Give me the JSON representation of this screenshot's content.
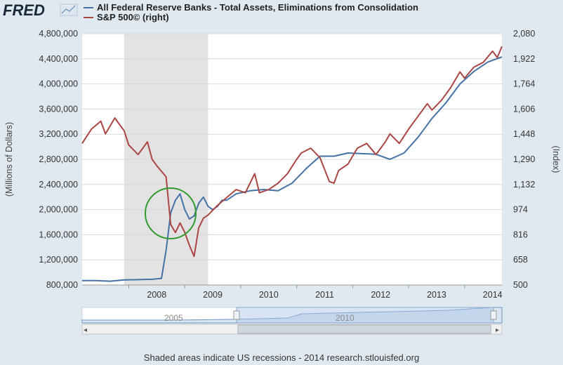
{
  "logo": {
    "text": "FRED",
    "icon": "fred-graph-icon"
  },
  "footer": {
    "text": "Shaded areas indicate US recessions - 2014 research.stlouisfed.org"
  },
  "colors": {
    "blue": "#4572a7",
    "red": "#aa4643",
    "recession": "#e3e3e3",
    "highlight_circle": "#2e9a2e"
  },
  "navigator": {
    "labels": [
      "2005",
      "2010"
    ],
    "scroll_left": "◂",
    "scroll_right": "▸"
  },
  "chart_data": {
    "type": "line",
    "x_ticks": [
      "2008",
      "2009",
      "2010",
      "2011",
      "2012",
      "2013",
      "2014"
    ],
    "xlim": [
      "2007-03",
      "2014-09"
    ],
    "left_axis": {
      "label": "(Millions of Dollars)",
      "ticks": [
        "800,000",
        "1,200,000",
        "1,600,000",
        "2,000,000",
        "2,400,000",
        "2,800,000",
        "3,200,000",
        "3,600,000",
        "4,000,000",
        "4,400,000",
        "4,800,000"
      ],
      "ylim": [
        800000,
        4800000
      ]
    },
    "right_axis": {
      "label": "(Index)",
      "ticks": [
        "500",
        "658",
        "816",
        "974",
        "1,132",
        "1,290",
        "1,448",
        "1,606",
        "1,764",
        "1,922",
        "2,080"
      ],
      "ylim": [
        500,
        2080
      ]
    },
    "recession": {
      "start": "2007-12",
      "end": "2009-06"
    },
    "grid": true,
    "legend_position": "top-left",
    "series": [
      {
        "name": "All Federal Reserve Banks - Total Assets, Eliminations from Consolidation",
        "axis": "left",
        "color": "#4572a7",
        "x": [
          "2007-03",
          "2007-06",
          "2007-09",
          "2007-12",
          "2008-03",
          "2008-06",
          "2008-08",
          "2008-09",
          "2008-10",
          "2008-11",
          "2008-12",
          "2009-01",
          "2009-02",
          "2009-03",
          "2009-04",
          "2009-05",
          "2009-06",
          "2009-07",
          "2009-08",
          "2009-09",
          "2009-10",
          "2009-11",
          "2009-12",
          "2010-03",
          "2010-06",
          "2010-09",
          "2010-12",
          "2011-03",
          "2011-06",
          "2011-09",
          "2011-12",
          "2012-03",
          "2012-06",
          "2012-09",
          "2012-12",
          "2013-03",
          "2013-06",
          "2013-09",
          "2013-12",
          "2014-03",
          "2014-06",
          "2014-09"
        ],
        "values": [
          870000,
          870000,
          860000,
          880000,
          885000,
          890000,
          905000,
          1350000,
          1950000,
          2150000,
          2250000,
          2000000,
          1850000,
          1900000,
          2100000,
          2200000,
          2050000,
          2000000,
          2050000,
          2150000,
          2150000,
          2200000,
          2250000,
          2300000,
          2320000,
          2300000,
          2420000,
          2650000,
          2850000,
          2850000,
          2900000,
          2890000,
          2880000,
          2800000,
          2900000,
          3150000,
          3450000,
          3700000,
          4000000,
          4200000,
          4350000,
          4430000
        ]
      },
      {
        "name": "S&P 500© (right)",
        "axis": "right",
        "color": "#aa4643",
        "x": [
          "2007-03",
          "2007-05",
          "2007-07",
          "2007-08",
          "2007-10",
          "2007-12",
          "2008-01",
          "2008-03",
          "2008-05",
          "2008-06",
          "2008-07",
          "2008-09",
          "2008-10",
          "2008-11",
          "2008-12",
          "2009-01",
          "2009-02",
          "2009-03",
          "2009-04",
          "2009-05",
          "2009-06",
          "2009-08",
          "2009-10",
          "2009-12",
          "2010-02",
          "2010-04",
          "2010-05",
          "2010-07",
          "2010-09",
          "2010-11",
          "2011-01",
          "2011-02",
          "2011-04",
          "2011-06",
          "2011-08",
          "2011-09",
          "2011-10",
          "2011-12",
          "2012-02",
          "2012-04",
          "2012-06",
          "2012-08",
          "2012-09",
          "2012-11",
          "2013-01",
          "2013-03",
          "2013-05",
          "2013-06",
          "2013-08",
          "2013-10",
          "2013-12",
          "2014-01",
          "2014-03",
          "2014-05",
          "2014-07",
          "2014-08",
          "2014-09"
        ],
        "values": [
          1390,
          1480,
          1530,
          1450,
          1550,
          1470,
          1380,
          1320,
          1400,
          1290,
          1250,
          1180,
          880,
          830,
          890,
          830,
          750,
          680,
          860,
          920,
          940,
          1000,
          1050,
          1100,
          1080,
          1200,
          1080,
          1100,
          1140,
          1200,
          1290,
          1330,
          1360,
          1300,
          1150,
          1140,
          1220,
          1260,
          1360,
          1390,
          1320,
          1400,
          1450,
          1390,
          1480,
          1560,
          1640,
          1600,
          1660,
          1740,
          1840,
          1800,
          1870,
          1900,
          1970,
          1930,
          2000
        ]
      }
    ]
  }
}
